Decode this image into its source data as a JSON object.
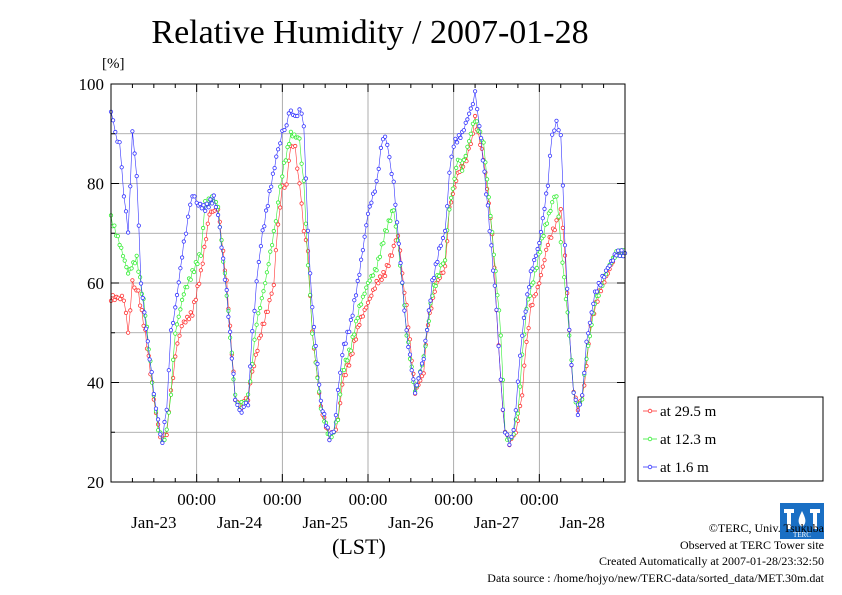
{
  "title": "Relative Humidity / 2007-01-28",
  "chart_data": {
    "type": "scatter",
    "title": "Relative Humidity / 2007-01-28",
    "ylabel": "[%]",
    "xlabel": "(LST)",
    "ylim": [
      20,
      100
    ],
    "xlim": [
      -1.0,
      5.0
    ],
    "x_unit": "days since 2007-01-23 00:00 LST",
    "yticks": [
      20,
      40,
      60,
      80,
      100
    ],
    "xtick_time_labels": [
      "00:00",
      "00:00",
      "00:00",
      "00:00",
      "00:00"
    ],
    "xtick_positions": [
      0,
      1,
      2,
      3,
      4
    ],
    "day_labels": [
      "Jan-23",
      "Jan-24",
      "Jan-25",
      "Jan-26",
      "Jan-27",
      "Jan-28"
    ],
    "grid": true,
    "legend_position": "right",
    "series": [
      {
        "name": "at 29.5 m",
        "color": "#ff3333",
        "keypoints": [
          [
            -1.0,
            57
          ],
          [
            -0.85,
            57
          ],
          [
            -0.8,
            50
          ],
          [
            -0.75,
            60
          ],
          [
            -0.68,
            58
          ],
          [
            -0.6,
            50
          ],
          [
            -0.5,
            37
          ],
          [
            -0.45,
            31
          ],
          [
            -0.4,
            28
          ],
          [
            -0.35,
            30
          ],
          [
            -0.3,
            38
          ],
          [
            -0.25,
            45
          ],
          [
            -0.2,
            50
          ],
          [
            -0.15,
            52
          ],
          [
            -0.05,
            54
          ],
          [
            0.05,
            62
          ],
          [
            0.15,
            74
          ],
          [
            0.25,
            75
          ],
          [
            0.35,
            60
          ],
          [
            0.45,
            37
          ],
          [
            0.5,
            35
          ],
          [
            0.55,
            36
          ],
          [
            0.6,
            37
          ],
          [
            0.65,
            42
          ],
          [
            0.75,
            50
          ],
          [
            0.85,
            56
          ],
          [
            0.9,
            60
          ],
          [
            0.95,
            72
          ],
          [
            1.0,
            79
          ],
          [
            1.05,
            80
          ],
          [
            1.1,
            88
          ],
          [
            1.15,
            87
          ],
          [
            1.2,
            80
          ],
          [
            1.25,
            71
          ],
          [
            1.3,
            66
          ],
          [
            1.35,
            50
          ],
          [
            1.45,
            35
          ],
          [
            1.55,
            29
          ],
          [
            1.6,
            30
          ],
          [
            1.65,
            32
          ],
          [
            1.7,
            40
          ],
          [
            1.8,
            45
          ],
          [
            1.9,
            52
          ],
          [
            2.0,
            56
          ],
          [
            2.1,
            60
          ],
          [
            2.2,
            62
          ],
          [
            2.3,
            67
          ],
          [
            2.35,
            70
          ],
          [
            2.4,
            62
          ],
          [
            2.45,
            55
          ],
          [
            2.55,
            38
          ],
          [
            2.65,
            42
          ],
          [
            2.7,
            52
          ],
          [
            2.8,
            60
          ],
          [
            2.9,
            63
          ],
          [
            2.95,
            75
          ],
          [
            3.05,
            82
          ],
          [
            3.15,
            85
          ],
          [
            3.2,
            88
          ],
          [
            3.25,
            93
          ],
          [
            3.35,
            85
          ],
          [
            3.45,
            70
          ],
          [
            3.5,
            55
          ],
          [
            3.55,
            40
          ],
          [
            3.6,
            30
          ],
          [
            3.65,
            28
          ],
          [
            3.7,
            29
          ],
          [
            3.75,
            32
          ],
          [
            3.8,
            38
          ],
          [
            3.85,
            48
          ],
          [
            3.9,
            55
          ],
          [
            4.0,
            60
          ],
          [
            4.1,
            68
          ],
          [
            4.2,
            72
          ],
          [
            4.25,
            75
          ],
          [
            4.3,
            66
          ],
          [
            4.35,
            50
          ],
          [
            4.4,
            38
          ],
          [
            4.45,
            35
          ],
          [
            4.5,
            37
          ],
          [
            4.55,
            43
          ],
          [
            4.6,
            52
          ],
          [
            4.7,
            58
          ],
          [
            4.8,
            62
          ],
          [
            4.9,
            66
          ],
          [
            5.0,
            66
          ]
        ]
      },
      {
        "name": "at 12.3 m",
        "color": "#33ee33",
        "keypoints": [
          [
            -1.0,
            73
          ],
          [
            -0.9,
            68
          ],
          [
            -0.8,
            62
          ],
          [
            -0.7,
            65
          ],
          [
            -0.6,
            54
          ],
          [
            -0.5,
            37
          ],
          [
            -0.45,
            31
          ],
          [
            -0.4,
            28
          ],
          [
            -0.35,
            30
          ],
          [
            -0.3,
            38
          ],
          [
            -0.25,
            50
          ],
          [
            -0.15,
            58
          ],
          [
            -0.05,
            62
          ],
          [
            0.05,
            66
          ],
          [
            0.1,
            76
          ],
          [
            0.2,
            77
          ],
          [
            0.25,
            75
          ],
          [
            0.35,
            58
          ],
          [
            0.45,
            37
          ],
          [
            0.5,
            35
          ],
          [
            0.55,
            36
          ],
          [
            0.6,
            37
          ],
          [
            0.65,
            44
          ],
          [
            0.7,
            52
          ],
          [
            0.8,
            60
          ],
          [
            0.9,
            70
          ],
          [
            0.95,
            76
          ],
          [
            1.0,
            82
          ],
          [
            1.1,
            90
          ],
          [
            1.2,
            89
          ],
          [
            1.25,
            80
          ],
          [
            1.3,
            64
          ],
          [
            1.35,
            50
          ],
          [
            1.45,
            35
          ],
          [
            1.55,
            29
          ],
          [
            1.6,
            30
          ],
          [
            1.65,
            33
          ],
          [
            1.7,
            42
          ],
          [
            1.8,
            47
          ],
          [
            1.9,
            55
          ],
          [
            2.0,
            60
          ],
          [
            2.1,
            63
          ],
          [
            2.2,
            70
          ],
          [
            2.3,
            75
          ],
          [
            2.35,
            68
          ],
          [
            2.4,
            60
          ],
          [
            2.45,
            50
          ],
          [
            2.55,
            38
          ],
          [
            2.65,
            45
          ],
          [
            2.75,
            58
          ],
          [
            2.85,
            63
          ],
          [
            2.9,
            65
          ],
          [
            2.95,
            75
          ],
          [
            3.05,
            85
          ],
          [
            3.1,
            83
          ],
          [
            3.2,
            90
          ],
          [
            3.25,
            93
          ],
          [
            3.35,
            88
          ],
          [
            3.45,
            70
          ],
          [
            3.55,
            50
          ],
          [
            3.6,
            30
          ],
          [
            3.65,
            28
          ],
          [
            3.7,
            30
          ],
          [
            3.75,
            34
          ],
          [
            3.8,
            45
          ],
          [
            3.85,
            55
          ],
          [
            3.95,
            62
          ],
          [
            4.05,
            70
          ],
          [
            4.15,
            76
          ],
          [
            4.2,
            78
          ],
          [
            4.25,
            68
          ],
          [
            4.35,
            50
          ],
          [
            4.4,
            38
          ],
          [
            4.45,
            35
          ],
          [
            4.5,
            37
          ],
          [
            4.55,
            45
          ],
          [
            4.65,
            56
          ],
          [
            4.8,
            63
          ],
          [
            4.9,
            66
          ],
          [
            5.0,
            66
          ]
        ]
      },
      {
        "name": "at 1.6 m",
        "color": "#3333ff",
        "keypoints": [
          [
            -1.0,
            95
          ],
          [
            -0.95,
            90
          ],
          [
            -0.9,
            88
          ],
          [
            -0.85,
            78
          ],
          [
            -0.8,
            70
          ],
          [
            -0.75,
            90
          ],
          [
            -0.7,
            82
          ],
          [
            -0.65,
            60
          ],
          [
            -0.55,
            45
          ],
          [
            -0.5,
            38
          ],
          [
            -0.45,
            32
          ],
          [
            -0.4,
            28
          ],
          [
            -0.35,
            35
          ],
          [
            -0.3,
            50
          ],
          [
            -0.25,
            55
          ],
          [
            -0.15,
            68
          ],
          [
            -0.1,
            73
          ],
          [
            -0.05,
            78
          ],
          [
            0.0,
            76
          ],
          [
            0.1,
            75
          ],
          [
            0.2,
            77
          ],
          [
            0.25,
            74
          ],
          [
            0.35,
            58
          ],
          [
            0.45,
            37
          ],
          [
            0.5,
            34
          ],
          [
            0.55,
            35
          ],
          [
            0.6,
            36
          ],
          [
            0.65,
            50
          ],
          [
            0.7,
            60
          ],
          [
            0.75,
            68
          ],
          [
            0.85,
            78
          ],
          [
            0.95,
            87
          ],
          [
            1.0,
            90
          ],
          [
            1.05,
            92
          ],
          [
            1.1,
            95
          ],
          [
            1.15,
            93
          ],
          [
            1.2,
            95
          ],
          [
            1.25,
            92
          ],
          [
            1.3,
            70
          ],
          [
            1.35,
            55
          ],
          [
            1.45,
            36
          ],
          [
            1.55,
            29
          ],
          [
            1.6,
            30
          ],
          [
            1.65,
            38
          ],
          [
            1.7,
            46
          ],
          [
            1.8,
            52
          ],
          [
            1.9,
            62
          ],
          [
            2.0,
            74
          ],
          [
            2.1,
            80
          ],
          [
            2.15,
            87
          ],
          [
            2.2,
            90
          ],
          [
            2.25,
            85
          ],
          [
            2.3,
            80
          ],
          [
            2.4,
            60
          ],
          [
            2.45,
            50
          ],
          [
            2.55,
            38
          ],
          [
            2.65,
            45
          ],
          [
            2.75,
            60
          ],
          [
            2.85,
            68
          ],
          [
            2.9,
            70
          ],
          [
            2.95,
            82
          ],
          [
            3.0,
            88
          ],
          [
            3.1,
            90
          ],
          [
            3.2,
            95
          ],
          [
            3.25,
            98
          ],
          [
            3.3,
            92
          ],
          [
            3.4,
            75
          ],
          [
            3.5,
            55
          ],
          [
            3.55,
            40
          ],
          [
            3.6,
            30
          ],
          [
            3.65,
            28
          ],
          [
            3.7,
            30
          ],
          [
            3.75,
            40
          ],
          [
            3.8,
            50
          ],
          [
            3.9,
            62
          ],
          [
            4.0,
            68
          ],
          [
            4.1,
            80
          ],
          [
            4.15,
            90
          ],
          [
            4.2,
            92
          ],
          [
            4.25,
            90
          ],
          [
            4.3,
            68
          ],
          [
            4.35,
            50
          ],
          [
            4.4,
            38
          ],
          [
            4.45,
            34
          ],
          [
            4.5,
            37
          ],
          [
            4.55,
            48
          ],
          [
            4.65,
            58
          ],
          [
            4.8,
            63
          ],
          [
            4.9,
            66
          ],
          [
            5.0,
            66
          ]
        ]
      }
    ]
  },
  "legend": {
    "items": [
      "at 29.5 m",
      "at 12.3 m",
      "at 1.6 m"
    ]
  },
  "credits": {
    "line1": "©TERC, Univ. Tsukuba",
    "line2": "Observed at TERC Tower site",
    "line3": "Created Automatically at 2007-01-28/23:32:50",
    "line4": "Data source : /home/hojyo/new/TERC-data/sorted_data/MET.30m.dat"
  },
  "logo": {
    "text": "TERC"
  }
}
